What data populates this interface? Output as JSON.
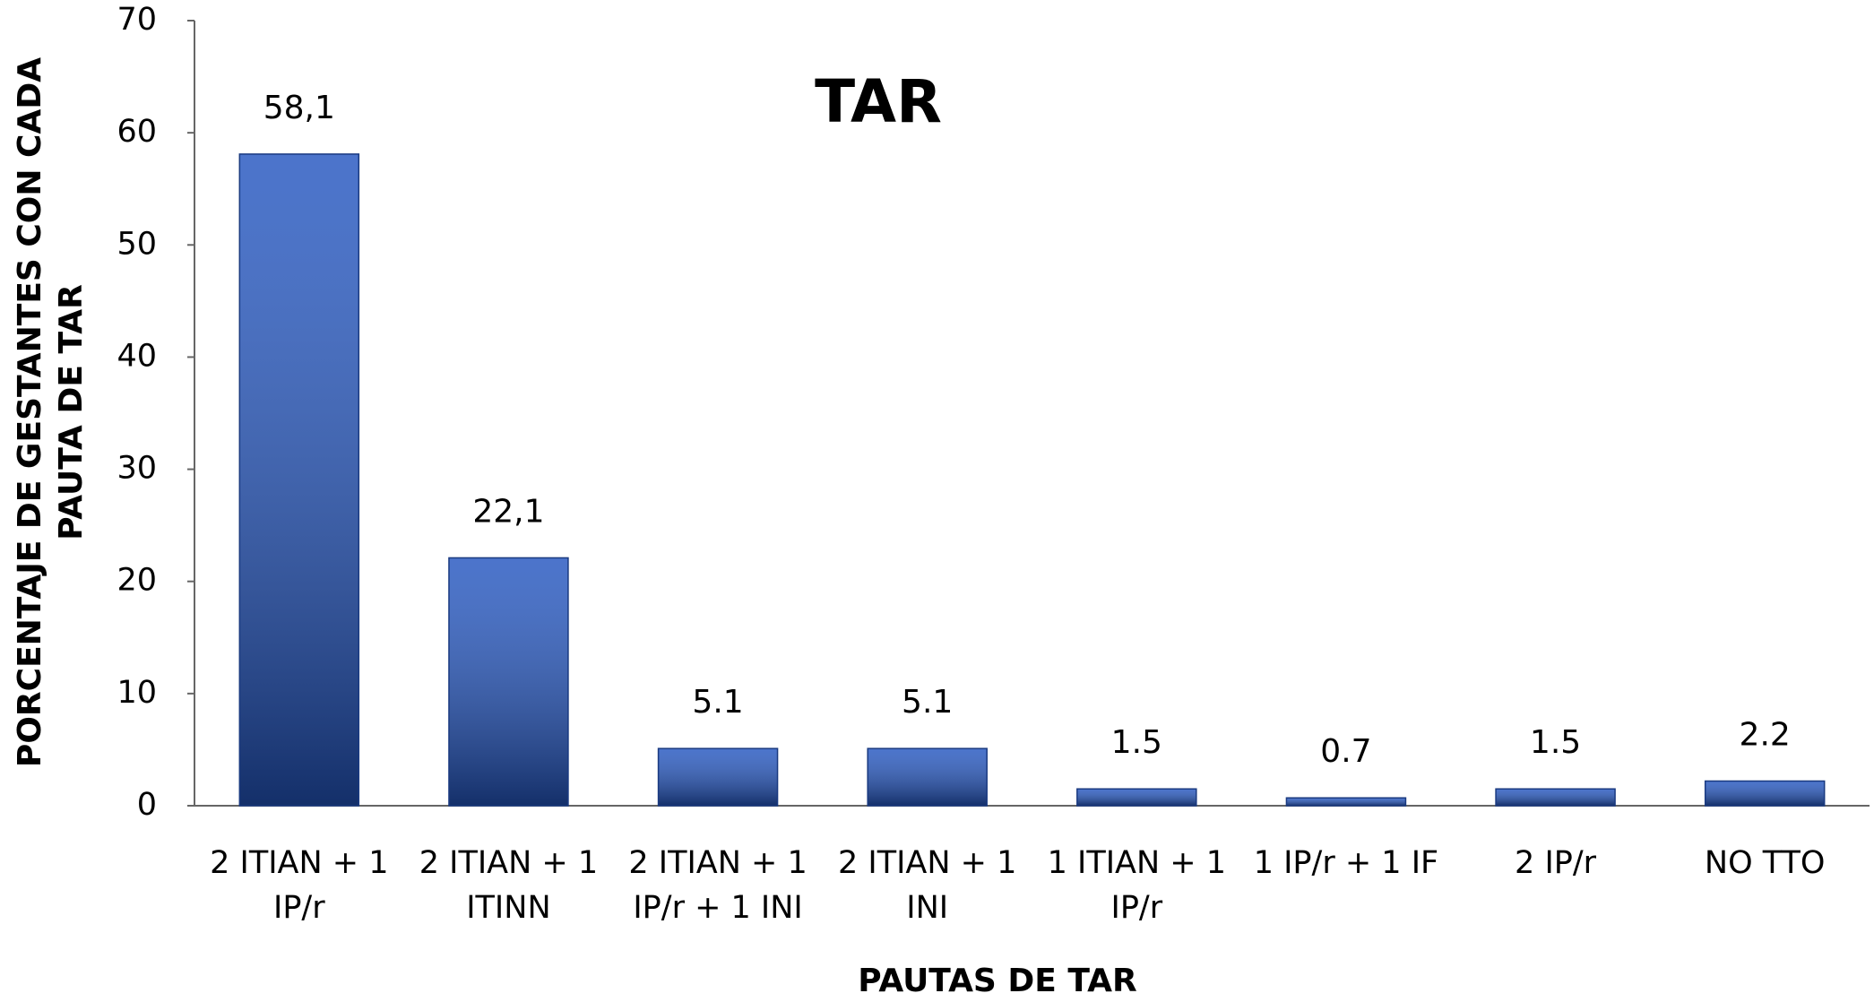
{
  "chart_data": {
    "type": "bar",
    "title": "TAR",
    "x_label": "PAUTAS DE TAR",
    "y_label": "PORCENTAJE DE GESTANTES CON CADA PAUTA DE TAR",
    "categories": [
      "2 ITIAN + 1 IP/r",
      "2 ITIAN + 1 ITINN",
      "2 ITIAN + 1 IP/r + 1 INI",
      "2 ITIAN + 1 INI",
      "1 ITIAN + 1 IP/r",
      "1 IP/r + 1 IF",
      "2 IP/r",
      "NO TTO"
    ],
    "values": [
      58.1,
      22.1,
      5.1,
      5.1,
      1.5,
      0.7,
      1.5,
      2.2
    ],
    "value_labels": [
      "58,1",
      "22,1",
      "5.1",
      "5.1",
      "1.5",
      "0.7",
      "1.5",
      "2.2"
    ],
    "color": "#2456c0",
    "ylim": [
      0,
      70
    ],
    "yticks": [
      0,
      10,
      20,
      30,
      40,
      50,
      60,
      70
    ],
    "grid": false
  }
}
